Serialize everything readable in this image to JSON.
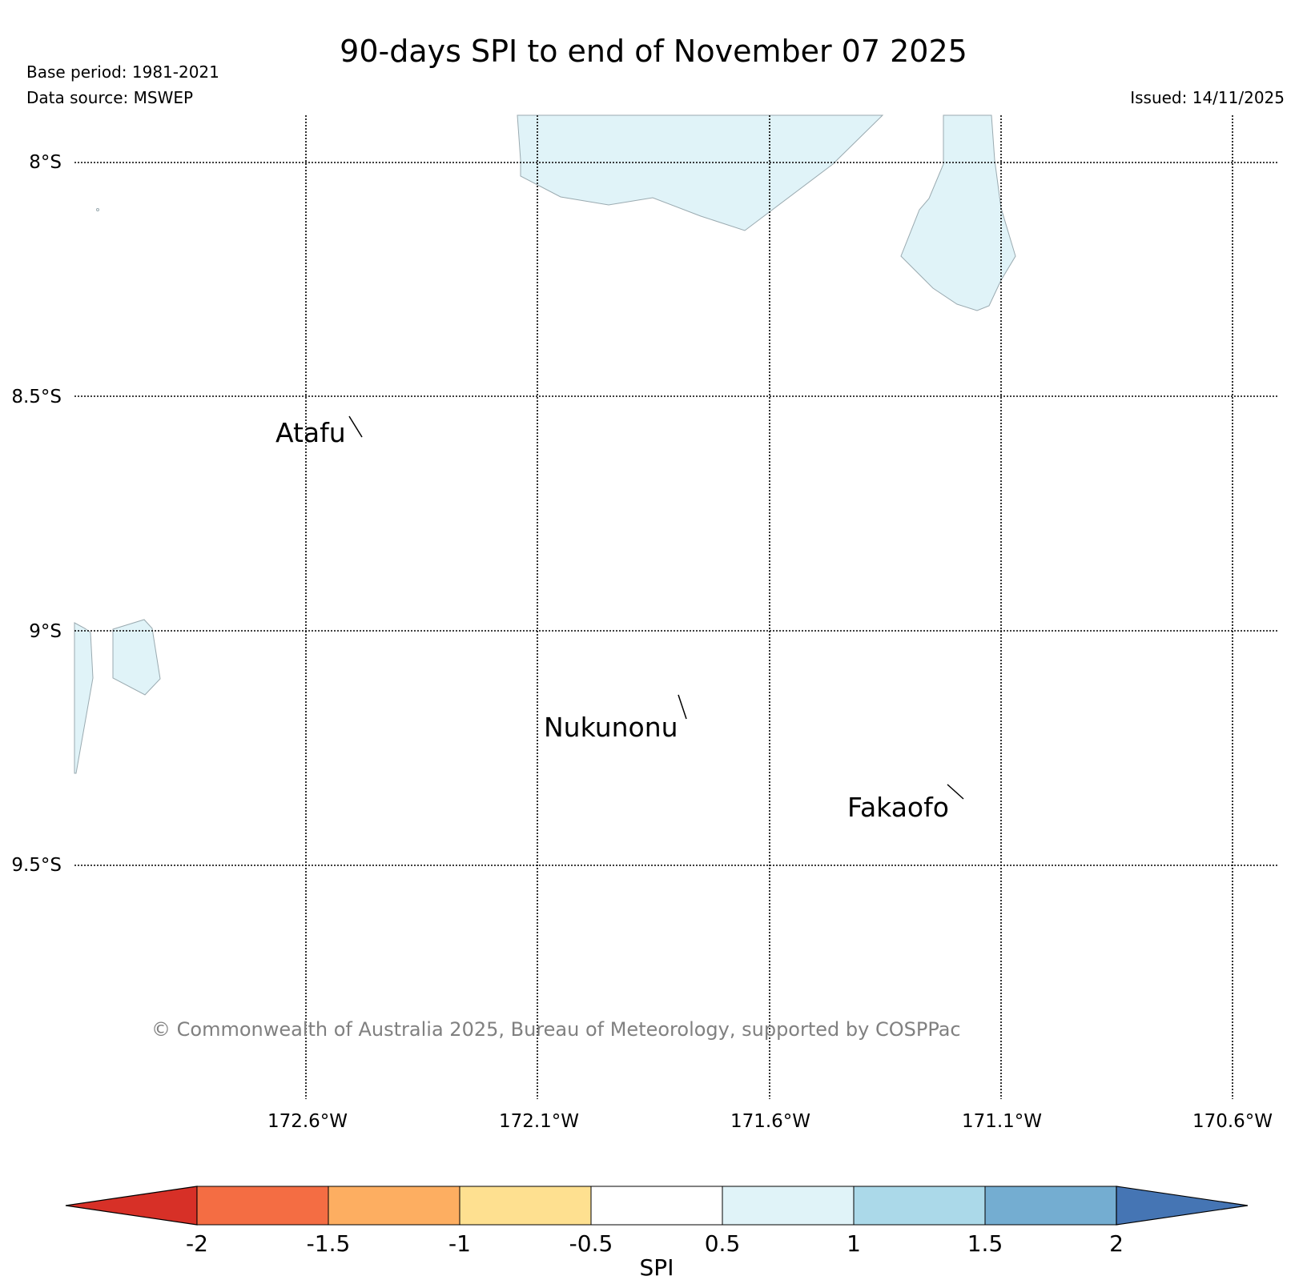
{
  "header": {
    "title": "90-days SPI to end of November 07 2025",
    "base_period": "Base period: 1981-2021",
    "data_source": "Data source: MSWEP",
    "issued": "Issued: 14/11/2025"
  },
  "map": {
    "lat_labels": [
      "8°S",
      "8.5°S",
      "9°S",
      "9.5°S"
    ],
    "lon_labels": [
      "172.6°W",
      "172.1°W",
      "171.6°W",
      "171.1°W",
      "170.6°W"
    ],
    "places": [
      {
        "name": "Atafu"
      },
      {
        "name": "Nukunonu"
      },
      {
        "name": "Fakaofo"
      }
    ],
    "copyright": "© Commonwealth of Australia 2025, Bureau of Meteorology, supported by COSPPac",
    "shaded_category_color": "#e0f3f8"
  },
  "colorbar": {
    "label": "SPI",
    "ticks": [
      "-2",
      "-1.5",
      "-1",
      "-0.5",
      "0.5",
      "1",
      "1.5",
      "2"
    ],
    "colors": {
      "below_min": "#d73027",
      "bins": [
        "#f46d43",
        "#fdae61",
        "#fee090",
        "#ffffff",
        "#e0f3f8",
        "#abd9e9",
        "#74add1"
      ],
      "above_max": "#4575b4"
    }
  }
}
